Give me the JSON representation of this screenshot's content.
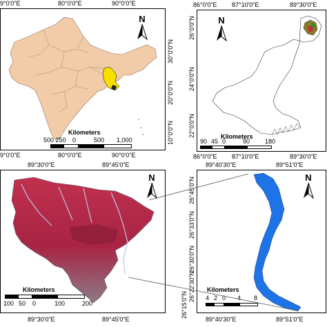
{
  "panels": {
    "india": {
      "top_labels": [
        "9°0'0\"E",
        "80°0'0\"E",
        "90°0'0\"E"
      ],
      "bottom_labels": [
        "9°0'0\"E",
        "80°0'0\"E",
        "90°0'0\"E"
      ],
      "right_labels": [
        "30°0'0\"N",
        "20°0'0\"N",
        "10°0'0\"N"
      ],
      "scale_title": "Kilometers",
      "scale_ticks": [
        "500 250",
        "0",
        "500",
        "1,000"
      ],
      "north": "N"
    },
    "wb": {
      "top_labels": [
        "86°0'0\"E",
        "87°10'0\"E",
        "89°30'0\"E"
      ],
      "bottom_labels": [
        "86°0'0\"E",
        "87°10'0\"E",
        "89°30'0\"E"
      ],
      "left_labels": [
        "26°0'0\"N",
        "24°0'0\"N",
        "22°0'0\"N"
      ],
      "right_labels": [
        "26°0'0\"N",
        "24°0'0\"N",
        "22°0'0\"N"
      ],
      "scale_title": "Kilometers",
      "scale_ticks": [
        "90",
        "45",
        "0",
        "90",
        "180"
      ],
      "north": "N"
    },
    "sat": {
      "top_labels": [
        "89°30'0\"E",
        "89°45'0\"E"
      ],
      "bottom_labels": [
        "89°30'0\"E",
        "89°45'0\"E"
      ],
      "scale_title": "Kilometers",
      "scale_ticks": [
        "100",
        "50",
        "0",
        "100",
        "200"
      ],
      "north": "N"
    },
    "river": {
      "top_labels": [
        "89°40'30\"E",
        "89°51'0\"E"
      ],
      "bottom_labels": [
        "89°40'30\"E",
        "89°51'0\"E"
      ],
      "left_labels": [
        "26°45'0\"N",
        "26°33'0\"N",
        "26°30'0\"N",
        "26°22'30\"N",
        "26°15'0\"N"
      ],
      "right_labels": [
        "26°45'0\"N",
        "26°30'0\"N",
        "26°15'0\"N"
      ],
      "scale_title": "Kilometers",
      "scale_ticks": [
        "4",
        "2",
        "0",
        "4",
        "8"
      ],
      "north": "N"
    }
  },
  "colors": {
    "land": "#f2cba8",
    "study_area": "#f5e000",
    "satellite": "#b52040",
    "river": "#1e73e6"
  }
}
